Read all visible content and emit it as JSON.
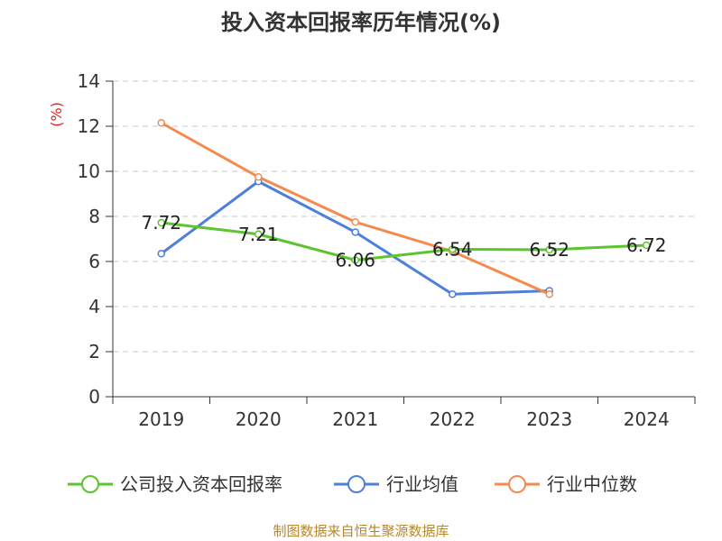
{
  "chart_data": {
    "type": "line",
    "title": "投入资本回报率历年情况(%)",
    "ylabel": "(%)",
    "categories": [
      "2019",
      "2020",
      "2021",
      "2022",
      "2023",
      "2024"
    ],
    "ylim": [
      0,
      14
    ],
    "yticks": [
      0,
      2,
      4,
      6,
      8,
      10,
      12,
      14
    ],
    "grid": true,
    "legend_position": "bottom",
    "series": [
      {
        "name": "公司投入资本回报率",
        "color": "#5cc42e",
        "values": [
          7.72,
          7.21,
          6.06,
          6.54,
          6.52,
          6.72
        ],
        "labels": [
          "7.72",
          "7.21",
          "6.06",
          "6.54",
          "6.52",
          "6.72"
        ]
      },
      {
        "name": "行业均值",
        "color": "#4f7fdc",
        "values": [
          6.35,
          9.55,
          7.3,
          4.55,
          4.7,
          null
        ]
      },
      {
        "name": "行业中位数",
        "color": "#f5894e",
        "values": [
          12.15,
          9.75,
          7.75,
          6.45,
          4.55,
          null
        ]
      }
    ]
  },
  "source": "制图数据来自恒生聚源数据库"
}
